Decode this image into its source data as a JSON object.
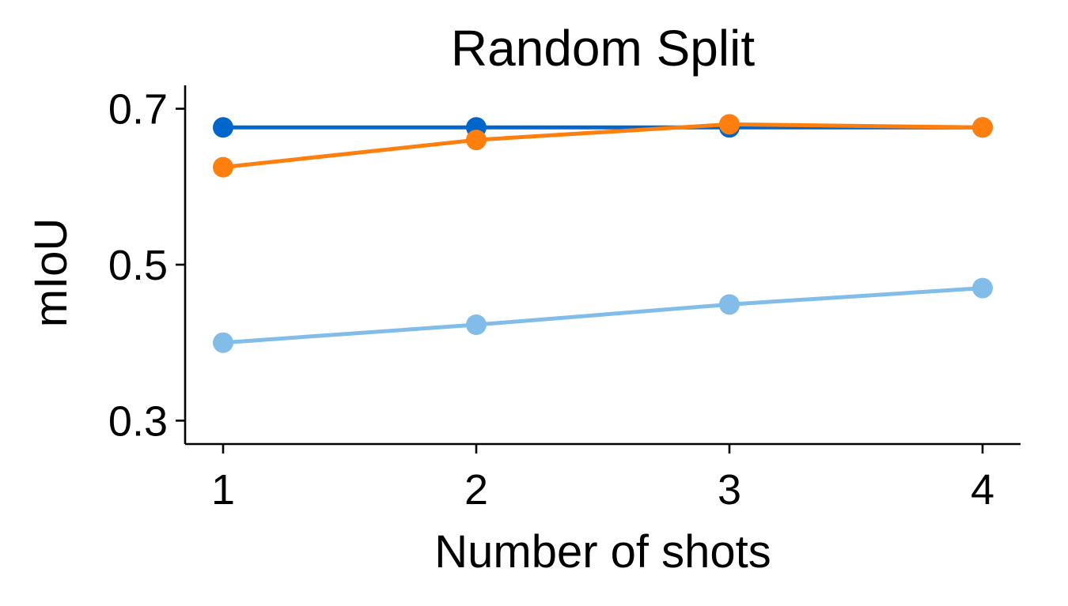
{
  "chart_data": {
    "type": "line",
    "title": "Random Split",
    "xlabel": "Number of shots",
    "ylabel": "mIoU",
    "x": [
      1,
      2,
      3,
      4
    ],
    "x_tick_labels": [
      "1",
      "2",
      "3",
      "4"
    ],
    "y_ticks": [
      0.3,
      0.5,
      0.7
    ],
    "y_tick_labels": [
      "0.3",
      "0.5",
      "0.7"
    ],
    "xlim": [
      0.85,
      4.15
    ],
    "ylim": [
      0.27,
      0.73
    ],
    "grid": false,
    "series": [
      {
        "values": [
          0.676,
          0.676,
          0.676,
          0.676
        ],
        "color": "#0066cc"
      },
      {
        "values": [
          0.625,
          0.66,
          0.68,
          0.676
        ],
        "color": "#ff7f0e"
      },
      {
        "values": [
          0.4,
          0.423,
          0.449,
          0.47
        ],
        "color": "#82bdea"
      }
    ]
  }
}
